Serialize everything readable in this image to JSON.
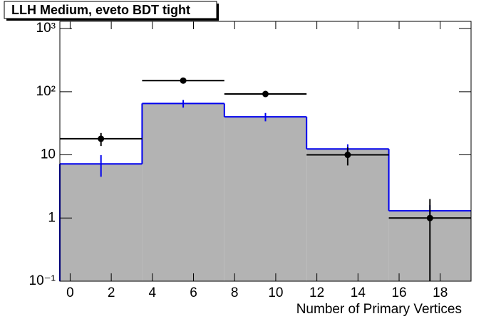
{
  "chart_data": {
    "type": "histogram",
    "title": "LLH Medium, eveto BDT tight",
    "x_label": "Number of Primary Vertices",
    "bins": [
      -0.5,
      3.5,
      7.5,
      11.5,
      15.5,
      19.5
    ],
    "mc": {
      "color": "#0000ee",
      "fill": "#b3b3b3",
      "values": [
        7.2,
        65,
        40,
        12.4,
        1.3
      ],
      "errors": [
        2.7,
        9,
        6,
        2.3,
        0.3
      ]
    },
    "data": {
      "color": "#000000",
      "x": [
        1.5,
        5.5,
        9.5,
        13.5,
        17.5
      ],
      "values": [
        18,
        150,
        92,
        10,
        1
      ],
      "errors": [
        4.2,
        12,
        9.6,
        3.2,
        1
      ]
    },
    "xlim": [
      -0.5,
      19.5
    ],
    "xticks": [
      0,
      2,
      4,
      6,
      8,
      10,
      12,
      14,
      16,
      18
    ],
    "ylim": [
      0.1,
      1300
    ],
    "log_y": true,
    "yticks": [
      {
        "value": 0.1,
        "label": "10⁻¹"
      },
      1,
      10,
      {
        "value": 100,
        "label": "10²"
      },
      {
        "value": 1000,
        "label": "10³"
      }
    ]
  }
}
